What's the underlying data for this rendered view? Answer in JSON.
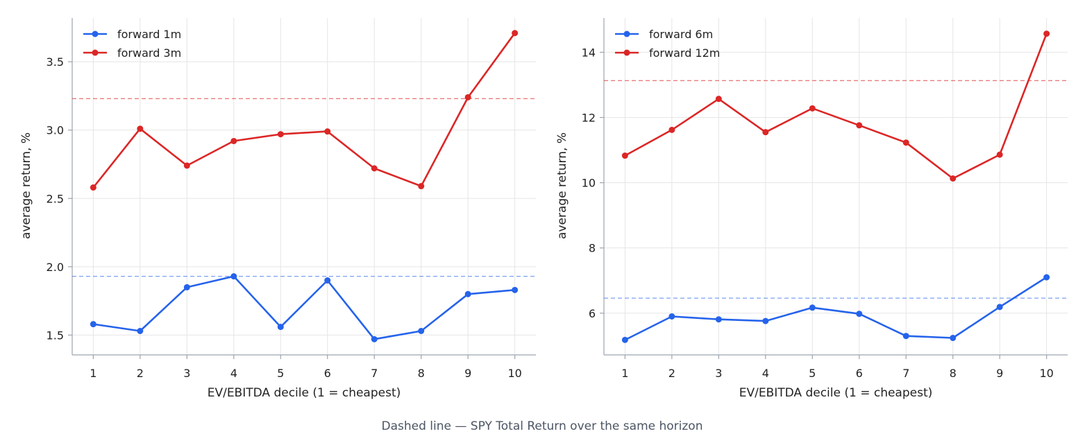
{
  "caption": "Dashed line — SPY Total Return over the same horizon",
  "colors": {
    "blue": "#2563eb",
    "red": "#dc2626",
    "grid": "#e5e5e5",
    "axis": "#9ca3af"
  },
  "chart_data": [
    {
      "type": "line",
      "xlabel": "EV/EBITDA decile (1 = cheapest)",
      "ylabel": "average return, %",
      "x": [
        1,
        2,
        3,
        4,
        5,
        6,
        7,
        8,
        9,
        10
      ],
      "xlim": [
        0.55,
        10.45
      ],
      "ylim": [
        1.355,
        3.82
      ],
      "yticks": [
        1.5,
        2.0,
        2.5,
        3.0,
        3.5
      ],
      "ytick_labels": [
        "1.5",
        "2.0",
        "2.5",
        "3.0",
        "3.5"
      ],
      "grid": true,
      "legend_position": "top-left",
      "series": [
        {
          "name": "forward 1m",
          "color": "#2563eb",
          "values": [
            1.58,
            1.53,
            1.85,
            1.93,
            1.56,
            1.9,
            1.47,
            1.53,
            1.8,
            1.83
          ]
        },
        {
          "name": "forward 3m",
          "color": "#dc2626",
          "values": [
            2.58,
            3.01,
            2.74,
            2.92,
            2.97,
            2.99,
            2.72,
            2.59,
            3.24,
            3.71
          ]
        }
      ],
      "reference_lines": [
        {
          "color": "#2563eb",
          "value": 1.93
        },
        {
          "color": "#dc2626",
          "value": 3.23
        }
      ]
    },
    {
      "type": "line",
      "xlabel": "EV/EBITDA decile (1 = cheapest)",
      "ylabel": "average return, %",
      "x": [
        1,
        2,
        3,
        4,
        5,
        6,
        7,
        8,
        9,
        10
      ],
      "xlim": [
        0.55,
        10.45
      ],
      "ylim": [
        4.72,
        15.05
      ],
      "yticks": [
        6,
        8,
        10,
        12,
        14
      ],
      "ytick_labels": [
        "6",
        "8",
        "10",
        "12",
        "14"
      ],
      "grid": true,
      "legend_position": "top-left",
      "series": [
        {
          "name": "forward 6m",
          "color": "#2563eb",
          "values": [
            5.18,
            5.9,
            5.81,
            5.76,
            6.17,
            5.98,
            5.3,
            5.24,
            6.19,
            7.1
          ]
        },
        {
          "name": "forward 12m",
          "color": "#dc2626",
          "values": [
            10.83,
            11.62,
            12.57,
            11.55,
            12.28,
            11.76,
            11.23,
            10.13,
            10.86,
            14.57
          ]
        }
      ],
      "reference_lines": [
        {
          "color": "#2563eb",
          "value": 6.46
        },
        {
          "color": "#dc2626",
          "value": 13.13
        }
      ]
    }
  ]
}
